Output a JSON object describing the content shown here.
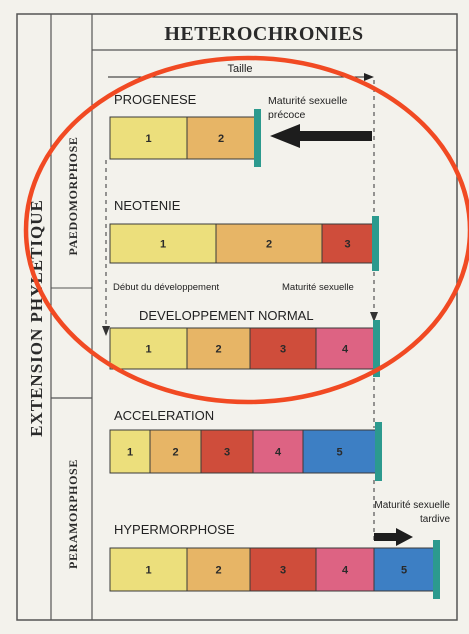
{
  "title": "HETEROCHRONIES",
  "left_labels": {
    "outer": "EXTENSION PHYLETIQUE",
    "upper": "PAEDOMORPHOSE",
    "lower": "PERAMORPHOSE"
  },
  "taille_label": "Taille",
  "annotations": {
    "maturite_precoce_line1": "Maturité sexuelle",
    "maturite_precoce_line2": "précoce",
    "debut_developpement": "Début du développement",
    "maturite_sexuelle": "Maturité sexuelle",
    "maturite_tardive_line1": "Maturité sexuelle",
    "maturite_tardive_line2": "tardive"
  },
  "colors": {
    "stage1": "#ecdf7c",
    "stage2": "#e7b566",
    "stage3": "#cf4d3b",
    "stage4": "#dd6383",
    "stage5": "#3d7fc4",
    "marker": "#2c9a8e",
    "circle": "#f14a23",
    "frame": "#444444"
  },
  "rows": [
    {
      "name": "PROGENESE",
      "segments": [
        {
          "label": "1",
          "stage": "stage1",
          "w": 77
        },
        {
          "label": "2",
          "stage": "stage2",
          "w": 68
        }
      ]
    },
    {
      "name": "NEOTENIE",
      "segments": [
        {
          "label": "1",
          "stage": "stage1",
          "w": 106
        },
        {
          "label": "2",
          "stage": "stage2",
          "w": 106
        },
        {
          "label": "3",
          "stage": "stage3",
          "w": 51
        }
      ]
    },
    {
      "name": "DEVELOPPEMENT NORMAL",
      "segments": [
        {
          "label": "1",
          "stage": "stage1",
          "w": 77
        },
        {
          "label": "2",
          "stage": "stage2",
          "w": 63
        },
        {
          "label": "3",
          "stage": "stage3",
          "w": 66
        },
        {
          "label": "4",
          "stage": "stage4",
          "w": 58
        }
      ]
    },
    {
      "name": "ACCELERATION",
      "segments": [
        {
          "label": "1",
          "stage": "stage1",
          "w": 40
        },
        {
          "label": "2",
          "stage": "stage2",
          "w": 51
        },
        {
          "label": "3",
          "stage": "stage3",
          "w": 52
        },
        {
          "label": "4",
          "stage": "stage4",
          "w": 50
        },
        {
          "label": "5",
          "stage": "stage5",
          "w": 73
        }
      ]
    },
    {
      "name": "HYPERMORPHOSE",
      "segments": [
        {
          "label": "1",
          "stage": "stage1",
          "w": 77
        },
        {
          "label": "2",
          "stage": "stage2",
          "w": 63
        },
        {
          "label": "3",
          "stage": "stage3",
          "w": 66
        },
        {
          "label": "4",
          "stage": "stage4",
          "w": 58
        },
        {
          "label": "5",
          "stage": "stage5",
          "w": 60
        }
      ]
    }
  ]
}
